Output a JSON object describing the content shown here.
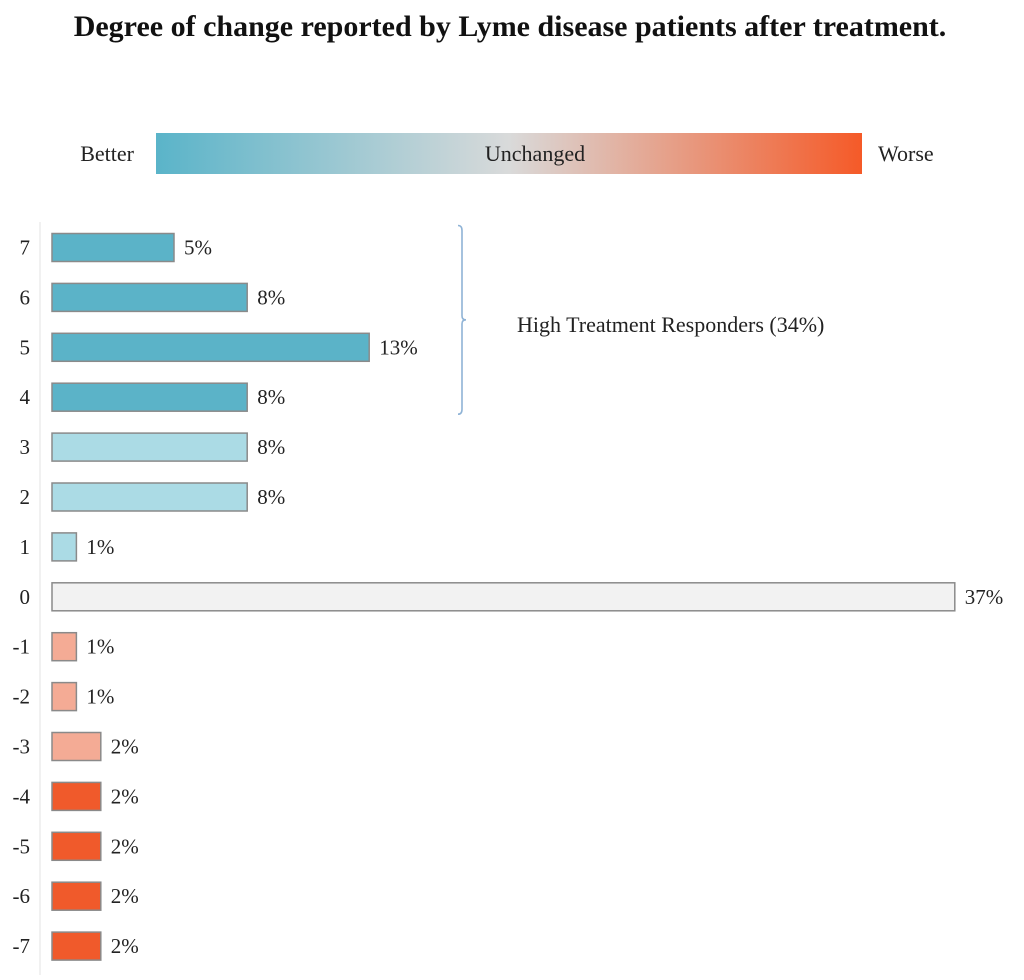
{
  "chart_data": {
    "type": "bar",
    "orientation": "horizontal",
    "title": "Degree of change reported by Lyme disease patients after treatment.",
    "categories": [
      "7",
      "6",
      "5",
      "4",
      "3",
      "2",
      "1",
      "0",
      "-1",
      "-2",
      "-3",
      "-4",
      "-5",
      "-6",
      "-7"
    ],
    "values": [
      5,
      8,
      13,
      8,
      8,
      8,
      1,
      37,
      1,
      1,
      2,
      2,
      2,
      2,
      2
    ],
    "value_labels": [
      "5%",
      "8%",
      "13%",
      "8%",
      "8%",
      "8%",
      "1%",
      "37%",
      "1%",
      "1%",
      "2%",
      "2%",
      "2%",
      "2%",
      "2%"
    ],
    "bar_colors": [
      "#5bb3c8",
      "#5bb3c8",
      "#5bb3c8",
      "#5bb3c8",
      "#abdbe5",
      "#abdbe5",
      "#abdbe5",
      "#f2f2f2",
      "#f4ab95",
      "#f4ab95",
      "#f4ab95",
      "#f05a2b",
      "#f05a2b",
      "#f05a2b",
      "#f05a2b"
    ],
    "scale_legend": {
      "left_label": "Better",
      "center_label": "Unchanged",
      "right_label": "Worse",
      "gradient_colors": [
        "#5ab4c9",
        "#d9dada",
        "#f55a28"
      ]
    },
    "annotation": {
      "text": "High Treatment Responders (34%)",
      "bracket_from": "7",
      "bracket_to": "4",
      "bracket_color": "#8fb3d6"
    },
    "grid": false
  }
}
